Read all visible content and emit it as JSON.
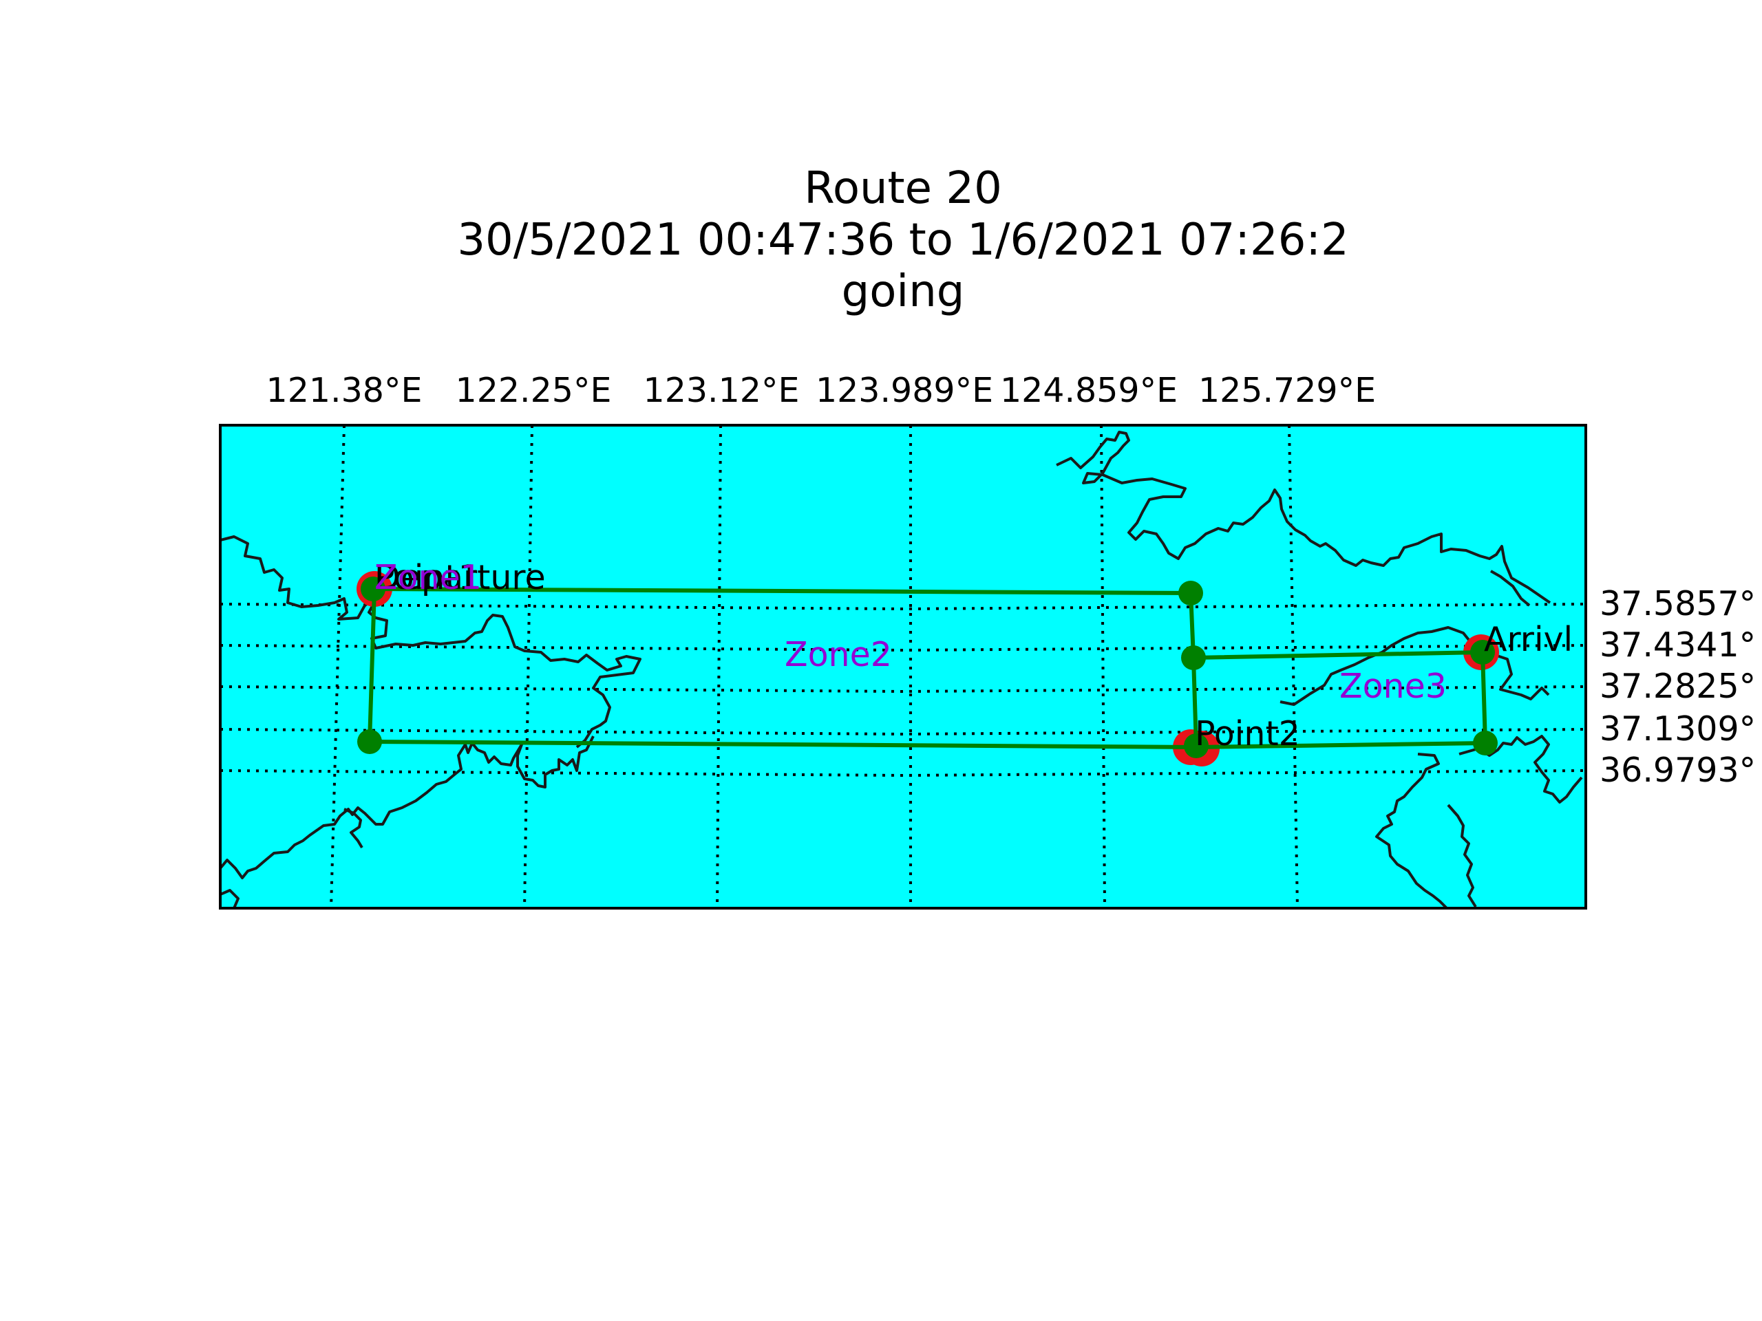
{
  "title": {
    "line1": "Route 20",
    "line2": "30/5/2021 00:47:36 to 1/6/2021 07:26:2",
    "line3": "going"
  },
  "colors": {
    "ocean": "#00ffff",
    "coastline": "#1a1a1a",
    "route": "#008000",
    "waypoint": "#008000",
    "event_point": "#e8141a",
    "zone_label": "#9400d3",
    "gridline": "#000000"
  },
  "map": {
    "longitude_labels": [
      "121.38°E",
      "122.25°E",
      "123.12°E",
      "123.989°E",
      "124.859°E",
      "125.729°E"
    ],
    "latitude_labels": [
      "37.5857°",
      "37.4341°",
      "37.2825°",
      "37.1309°",
      "36.9793°"
    ],
    "event_points": [
      {
        "name": "Departure"
      },
      {
        "name": "Point1"
      },
      {
        "name": "Point2"
      },
      {
        "name": "Arrivl"
      }
    ],
    "zone_labels": [
      "Zone1",
      "Zone2",
      "Zone3"
    ]
  }
}
